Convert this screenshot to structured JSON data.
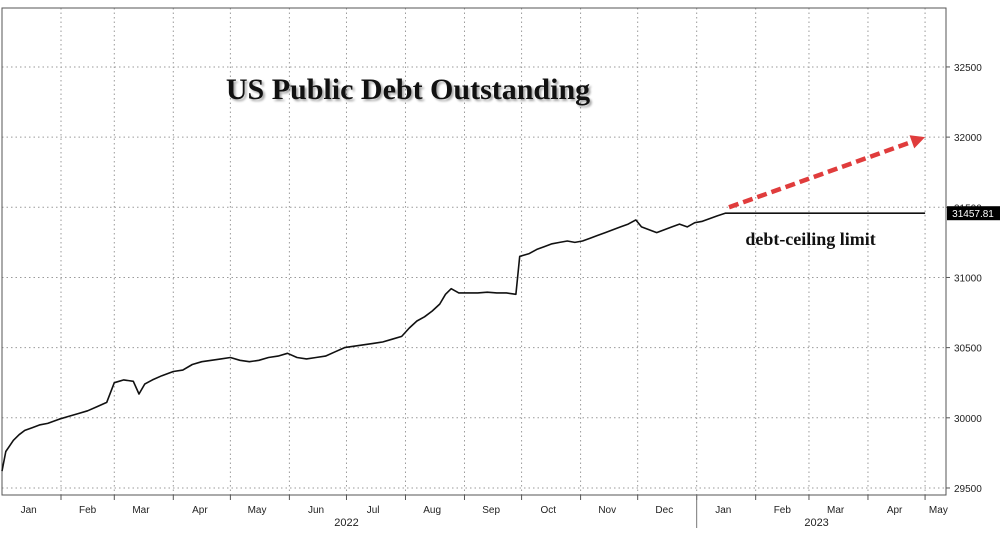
{
  "chart_data": {
    "type": "line",
    "title": "US Public Debt Outstanding",
    "xlabel": "",
    "ylabel": "",
    "xlim": [
      "2022-01-01",
      "2023-05-12"
    ],
    "ylim": [
      29450,
      32920
    ],
    "y_ticks": [
      29500,
      30000,
      30500,
      31000,
      31500,
      32000,
      32500
    ],
    "y_axis_side": "right",
    "grid": true,
    "x_month_ticks": [
      {
        "label": "Jan",
        "date": "2022-01-15"
      },
      {
        "label": "Feb",
        "date": "2022-02-15"
      },
      {
        "label": "Mar",
        "date": "2022-03-15"
      },
      {
        "label": "Apr",
        "date": "2022-04-15"
      },
      {
        "label": "May",
        "date": "2022-05-15"
      },
      {
        "label": "Jun",
        "date": "2022-06-15"
      },
      {
        "label": "Jul",
        "date": "2022-07-15"
      },
      {
        "label": "Aug",
        "date": "2022-08-15"
      },
      {
        "label": "Sep",
        "date": "2022-09-15"
      },
      {
        "label": "Oct",
        "date": "2022-10-15"
      },
      {
        "label": "Nov",
        "date": "2022-11-15"
      },
      {
        "label": "Dec",
        "date": "2022-12-15"
      },
      {
        "label": "Jan",
        "date": "2023-01-15"
      },
      {
        "label": "Feb",
        "date": "2023-02-15"
      },
      {
        "label": "Mar",
        "date": "2023-03-15"
      },
      {
        "label": "Apr",
        "date": "2023-04-15"
      },
      {
        "label": "May",
        "date": "2023-05-08"
      }
    ],
    "year_labels": [
      {
        "label": "2022",
        "date": "2022-07-01"
      },
      {
        "label": "2023",
        "date": "2023-03-05"
      }
    ],
    "year_divider": "2023-01-01",
    "series": [
      {
        "color": "#111111",
        "points": [
          [
            "2022-01-01",
            29620
          ],
          [
            "2022-01-03",
            29760
          ],
          [
            "2022-01-05",
            29800
          ],
          [
            "2022-01-07",
            29840
          ],
          [
            "2022-01-10",
            29880
          ],
          [
            "2022-01-13",
            29910
          ],
          [
            "2022-01-17",
            29930
          ],
          [
            "2022-01-21",
            29950
          ],
          [
            "2022-01-25",
            29960
          ],
          [
            "2022-01-31",
            29990
          ],
          [
            "2022-02-05",
            30010
          ],
          [
            "2022-02-10",
            30030
          ],
          [
            "2022-02-15",
            30050
          ],
          [
            "2022-02-20",
            30080
          ],
          [
            "2022-02-25",
            30110
          ],
          [
            "2022-03-01",
            30250
          ],
          [
            "2022-03-06",
            30270
          ],
          [
            "2022-03-11",
            30260
          ],
          [
            "2022-03-14",
            30170
          ],
          [
            "2022-03-17",
            30240
          ],
          [
            "2022-03-21",
            30270
          ],
          [
            "2022-03-26",
            30300
          ],
          [
            "2022-04-01",
            30330
          ],
          [
            "2022-04-06",
            30340
          ],
          [
            "2022-04-11",
            30380
          ],
          [
            "2022-04-16",
            30400
          ],
          [
            "2022-04-21",
            30410
          ],
          [
            "2022-04-26",
            30420
          ],
          [
            "2022-05-01",
            30430
          ],
          [
            "2022-05-06",
            30410
          ],
          [
            "2022-05-11",
            30400
          ],
          [
            "2022-05-16",
            30410
          ],
          [
            "2022-05-21",
            30430
          ],
          [
            "2022-05-26",
            30440
          ],
          [
            "2022-05-31",
            30460
          ],
          [
            "2022-06-05",
            30430
          ],
          [
            "2022-06-10",
            30420
          ],
          [
            "2022-06-15",
            30430
          ],
          [
            "2022-06-20",
            30440
          ],
          [
            "2022-06-25",
            30470
          ],
          [
            "2022-06-30",
            30500
          ],
          [
            "2022-07-05",
            30510
          ],
          [
            "2022-07-10",
            30520
          ],
          [
            "2022-07-15",
            30530
          ],
          [
            "2022-07-20",
            30540
          ],
          [
            "2022-07-25",
            30560
          ],
          [
            "2022-07-30",
            30580
          ],
          [
            "2022-08-03",
            30640
          ],
          [
            "2022-08-07",
            30690
          ],
          [
            "2022-08-11",
            30720
          ],
          [
            "2022-08-15",
            30760
          ],
          [
            "2022-08-19",
            30810
          ],
          [
            "2022-08-22",
            30880
          ],
          [
            "2022-08-25",
            30920
          ],
          [
            "2022-08-29",
            30890
          ],
          [
            "2022-09-03",
            30890
          ],
          [
            "2022-09-08",
            30890
          ],
          [
            "2022-09-13",
            30895
          ],
          [
            "2022-09-18",
            30890
          ],
          [
            "2022-09-23",
            30890
          ],
          [
            "2022-09-28",
            30880
          ],
          [
            "2022-09-30",
            31150
          ],
          [
            "2022-10-05",
            31170
          ],
          [
            "2022-10-09",
            31200
          ],
          [
            "2022-10-13",
            31220
          ],
          [
            "2022-10-17",
            31240
          ],
          [
            "2022-10-21",
            31250
          ],
          [
            "2022-10-25",
            31260
          ],
          [
            "2022-10-29",
            31250
          ],
          [
            "2022-11-02",
            31260
          ],
          [
            "2022-11-06",
            31280
          ],
          [
            "2022-11-10",
            31300
          ],
          [
            "2022-11-14",
            31320
          ],
          [
            "2022-11-18",
            31340
          ],
          [
            "2022-11-22",
            31360
          ],
          [
            "2022-11-26",
            31380
          ],
          [
            "2022-11-30",
            31410
          ],
          [
            "2022-12-03",
            31360
          ],
          [
            "2022-12-07",
            31340
          ],
          [
            "2022-12-11",
            31320
          ],
          [
            "2022-12-15",
            31340
          ],
          [
            "2022-12-19",
            31360
          ],
          [
            "2022-12-23",
            31380
          ],
          [
            "2022-12-27",
            31360
          ],
          [
            "2022-12-31",
            31390
          ],
          [
            "2023-01-04",
            31400
          ],
          [
            "2023-01-08",
            31420
          ],
          [
            "2023-01-12",
            31440
          ],
          [
            "2023-01-16",
            31457.81
          ],
          [
            "2023-01-20",
            31457.81
          ],
          [
            "2023-02-01",
            31457.81
          ],
          [
            "2023-03-01",
            31457.81
          ],
          [
            "2023-04-01",
            31457.81
          ],
          [
            "2023-05-01",
            31457.81
          ]
        ]
      }
    ],
    "last_value_label": "31457.81",
    "last_value_label_color": "#000000",
    "projection_arrow": {
      "color": "#e03c3c",
      "style": "dashed",
      "from": [
        "2023-01-18",
        31500
      ],
      "to": [
        "2023-05-01",
        32000
      ]
    },
    "annotations": [
      {
        "text": "debt-ceiling limit",
        "date": "2023-01-15",
        "value": 31260
      }
    ]
  }
}
